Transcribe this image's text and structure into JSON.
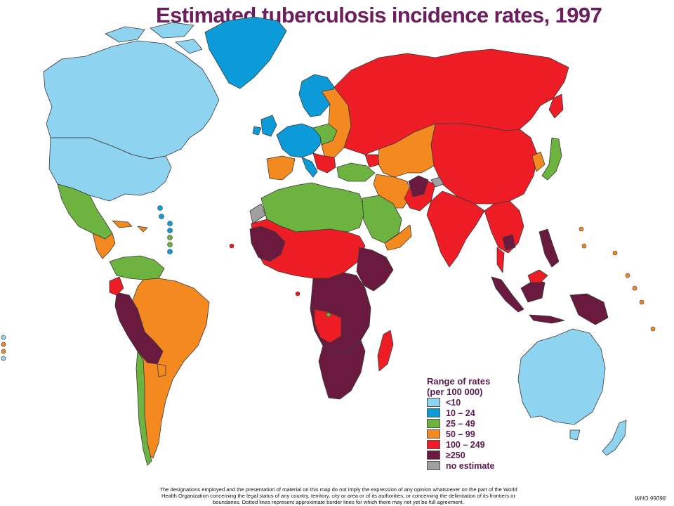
{
  "title": "Estimated tuberculosis incidence rates, 1997",
  "colors": {
    "lt10": "#8ed3f0",
    "r10_24": "#0a9bd8",
    "r25_49": "#6cb33f",
    "r50_99": "#f4891f",
    "r100_249": "#ee1c25",
    "ge250": "#6b1a3f",
    "no_estimate": "#a0a0a0",
    "border": "#3a3a3a"
  },
  "legend": {
    "title_line1": "Range of rates",
    "title_line2": "(per 100 000)",
    "items": [
      {
        "label": "<10",
        "color": "#8ed3f0"
      },
      {
        "label": "10 – 24",
        "color": "#0a9bd8"
      },
      {
        "label": "25 – 49",
        "color": "#6cb33f"
      },
      {
        "label": "50 – 99",
        "color": "#f4891f"
      },
      {
        "label": "100 – 249",
        "color": "#ee1c25"
      },
      {
        "label": "≥250",
        "color": "#6b1a3f"
      },
      {
        "label": "no estimate",
        "color": "#a0a0a0"
      }
    ]
  },
  "disclaimer": "The designations employed and the presentation of material on this map do not imply the expression of any opinion whatsoever on the part of the World Health Organization concerning the legal status of any country, territory, city or area or of its authorities, or concerning the delimitation of its frontiers or boundaries. Dotted lines represent approximate border lines for which there may not yet be full agreement.",
  "code": "WHO 99098"
}
